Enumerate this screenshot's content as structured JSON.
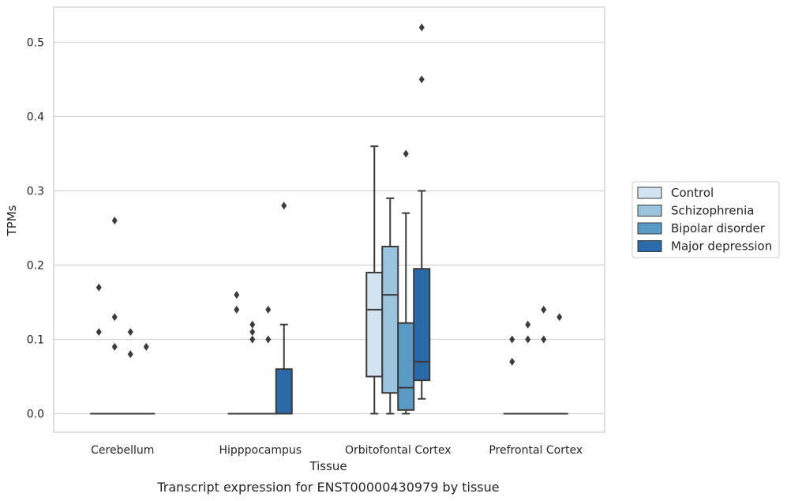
{
  "chart_data": {
    "type": "box",
    "xlabel": "Tissue",
    "ylabel": "TPMs",
    "caption": "Transcript expression for ENST00000430979 by tissue",
    "ylim": [
      -0.025,
      0.545
    ],
    "yticks": [
      0.0,
      0.1,
      0.2,
      0.3,
      0.4,
      0.5
    ],
    "ytick_labels": [
      "0.0",
      "0.1",
      "0.2",
      "0.3",
      "0.4",
      "0.5"
    ],
    "grid": "horizontal",
    "legend_position": "right",
    "categories": [
      "Cerebellum",
      "Hipppocampus",
      "Orbitofontal Cortex",
      "Prefrontal Cortex"
    ],
    "series": [
      {
        "name": "Control",
        "color": "#d4e3f2",
        "boxes": [
          {
            "q1": 0.0,
            "median": 0.0,
            "q3": 0.0,
            "whislo": 0.0,
            "whishi": 0.0,
            "fliers": [
              0.17,
              0.11
            ]
          },
          {
            "q1": 0.0,
            "median": 0.0,
            "q3": 0.0,
            "whislo": 0.0,
            "whishi": 0.0,
            "fliers": [
              0.16,
              0.14
            ]
          },
          {
            "q1": 0.05,
            "median": 0.14,
            "q3": 0.19,
            "whislo": 0.0,
            "whishi": 0.36,
            "fliers": []
          },
          {
            "q1": 0.0,
            "median": 0.0,
            "q3": 0.0,
            "whislo": 0.0,
            "whishi": 0.0,
            "fliers": [
              0.1,
              0.07
            ]
          }
        ]
      },
      {
        "name": "Schizophrenia",
        "color": "#9cc3dd",
        "boxes": [
          {
            "q1": 0.0,
            "median": 0.0,
            "q3": 0.0,
            "whislo": 0.0,
            "whishi": 0.0,
            "fliers": [
              0.26,
              0.13,
              0.09
            ]
          },
          {
            "q1": 0.0,
            "median": 0.0,
            "q3": 0.0,
            "whislo": 0.0,
            "whishi": 0.0,
            "fliers": [
              0.12,
              0.11,
              0.1
            ]
          },
          {
            "q1": 0.028,
            "median": 0.16,
            "q3": 0.225,
            "whislo": 0.0,
            "whishi": 0.29,
            "fliers": []
          },
          {
            "q1": 0.0,
            "median": 0.0,
            "q3": 0.0,
            "whislo": 0.0,
            "whishi": 0.0,
            "fliers": [
              0.12,
              0.1
            ]
          }
        ]
      },
      {
        "name": "Bipolar disorder",
        "color": "#5a9ac5",
        "boxes": [
          {
            "q1": 0.0,
            "median": 0.0,
            "q3": 0.0,
            "whislo": 0.0,
            "whishi": 0.0,
            "fliers": [
              0.11,
              0.08
            ]
          },
          {
            "q1": 0.0,
            "median": 0.0,
            "q3": 0.0,
            "whislo": 0.0,
            "whishi": 0.0,
            "fliers": [
              0.14,
              0.1
            ]
          },
          {
            "q1": 0.005,
            "median": 0.035,
            "q3": 0.122,
            "whislo": 0.0,
            "whishi": 0.27,
            "fliers": [
              0.35
            ]
          },
          {
            "q1": 0.0,
            "median": 0.0,
            "q3": 0.0,
            "whislo": 0.0,
            "whishi": 0.0,
            "fliers": [
              0.14,
              0.1
            ]
          }
        ]
      },
      {
        "name": "Major depression",
        "color": "#2a6aa8",
        "boxes": [
          {
            "q1": 0.0,
            "median": 0.0,
            "q3": 0.0,
            "whislo": 0.0,
            "whishi": 0.0,
            "fliers": [
              0.09
            ]
          },
          {
            "q1": 0.0,
            "median": 0.0,
            "q3": 0.06,
            "whislo": 0.0,
            "whishi": 0.12,
            "fliers": [
              0.28
            ]
          },
          {
            "q1": 0.045,
            "median": 0.07,
            "q3": 0.195,
            "whislo": 0.02,
            "whishi": 0.3,
            "fliers": [
              0.45,
              0.52
            ]
          },
          {
            "q1": 0.0,
            "median": 0.0,
            "q3": 0.0,
            "whislo": 0.0,
            "whishi": 0.0,
            "fliers": [
              0.13
            ]
          }
        ]
      }
    ]
  }
}
